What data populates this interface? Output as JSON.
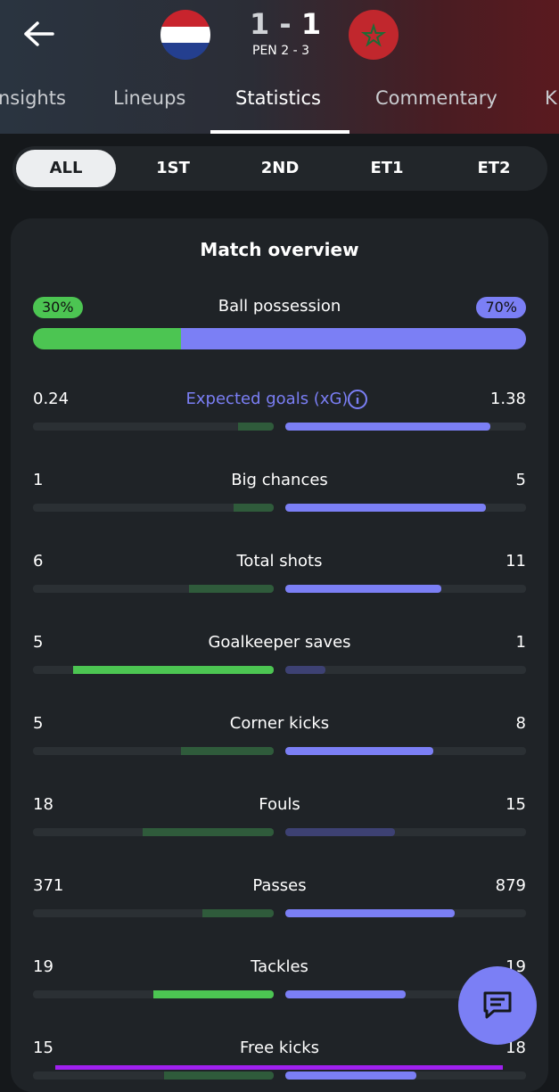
{
  "header": {
    "score_home": "1",
    "score_separator": "-",
    "score_away": "1",
    "penalties": "PEN 2 - 3"
  },
  "tabs": [
    "nsights",
    "Lineups",
    "Statistics",
    "Commentary",
    "K"
  ],
  "active_tab": 2,
  "periods": [
    "ALL",
    "1ST",
    "2ND",
    "ET1",
    "ET2"
  ],
  "active_period": 0,
  "overview": {
    "title": "Match overview",
    "possession": {
      "name": "Ball possession",
      "home": 30,
      "away": 70,
      "value_labels": [
        "30%",
        "70%"
      ]
    },
    "home_color": "#4cc552",
    "home_dim": "#2f5b3b",
    "away_color": "#7b7ff5",
    "away_dim": "#3d4173",
    "rows": [
      {
        "name": "Expected goals (xG)",
        "home": 0.24,
        "away": 1.38
      },
      {
        "name": "Big chances",
        "home": 1,
        "away": 5
      },
      {
        "name": "Total shots",
        "home": 6,
        "away": 11
      },
      {
        "name": "Goalkeeper saves",
        "home": 5,
        "away": 1
      },
      {
        "name": "Corner kicks",
        "home": 5,
        "away": 8
      },
      {
        "name": "Fouls",
        "home": 18,
        "away": 15
      },
      {
        "name": "Passes",
        "home": 371,
        "away": 879
      },
      {
        "name": "Tackles",
        "home": 19,
        "away": 19
      },
      {
        "name": "Free kicks",
        "home": 15,
        "away": 18
      }
    ]
  }
}
